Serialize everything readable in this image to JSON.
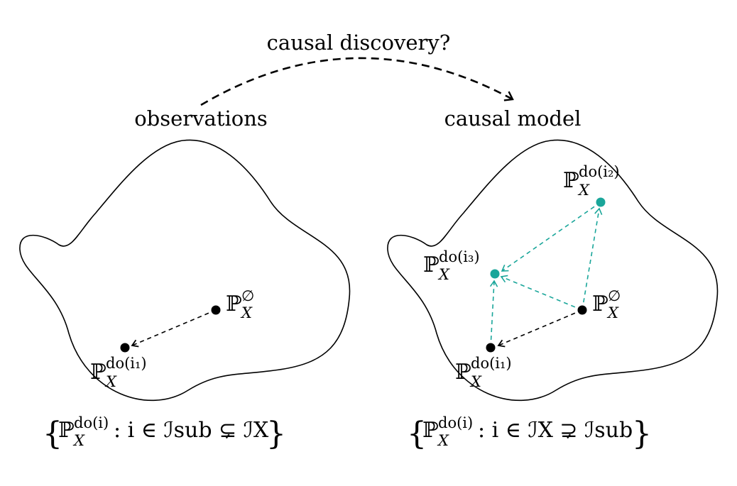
{
  "title": "causal discovery?",
  "left": {
    "heading": "observations",
    "obs_symbol": "ℙ",
    "obs_sub": "X",
    "obs_sup": "∅",
    "int1_symbol": "ℙ",
    "int1_sub": "X",
    "int1_sup": "do(i₁)",
    "set_notation": "ℙ",
    "set_sup": "do(i)",
    "set_sub": "X",
    "set_rest": ":  i ∈ ℐsub ⊊ ℐX"
  },
  "right": {
    "heading": "causal model",
    "obs_symbol": "ℙ",
    "obs_sub": "X",
    "obs_sup": "∅",
    "int1_symbol": "ℙ",
    "int1_sub": "X",
    "int1_sup": "do(i₁)",
    "int2_symbol": "ℙ",
    "int2_sub": "X",
    "int2_sup": "do(i₂)",
    "int3_symbol": "ℙ",
    "int3_sub": "X",
    "int3_sup": "do(i₃)",
    "set_notation": "ℙ",
    "set_sup": "do(i)",
    "set_sub": "X",
    "set_rest": ":  i ∈ ℐX ⊋ ℐsub"
  },
  "colors": {
    "observed": "#000000",
    "hidden": "#1aa69a"
  }
}
